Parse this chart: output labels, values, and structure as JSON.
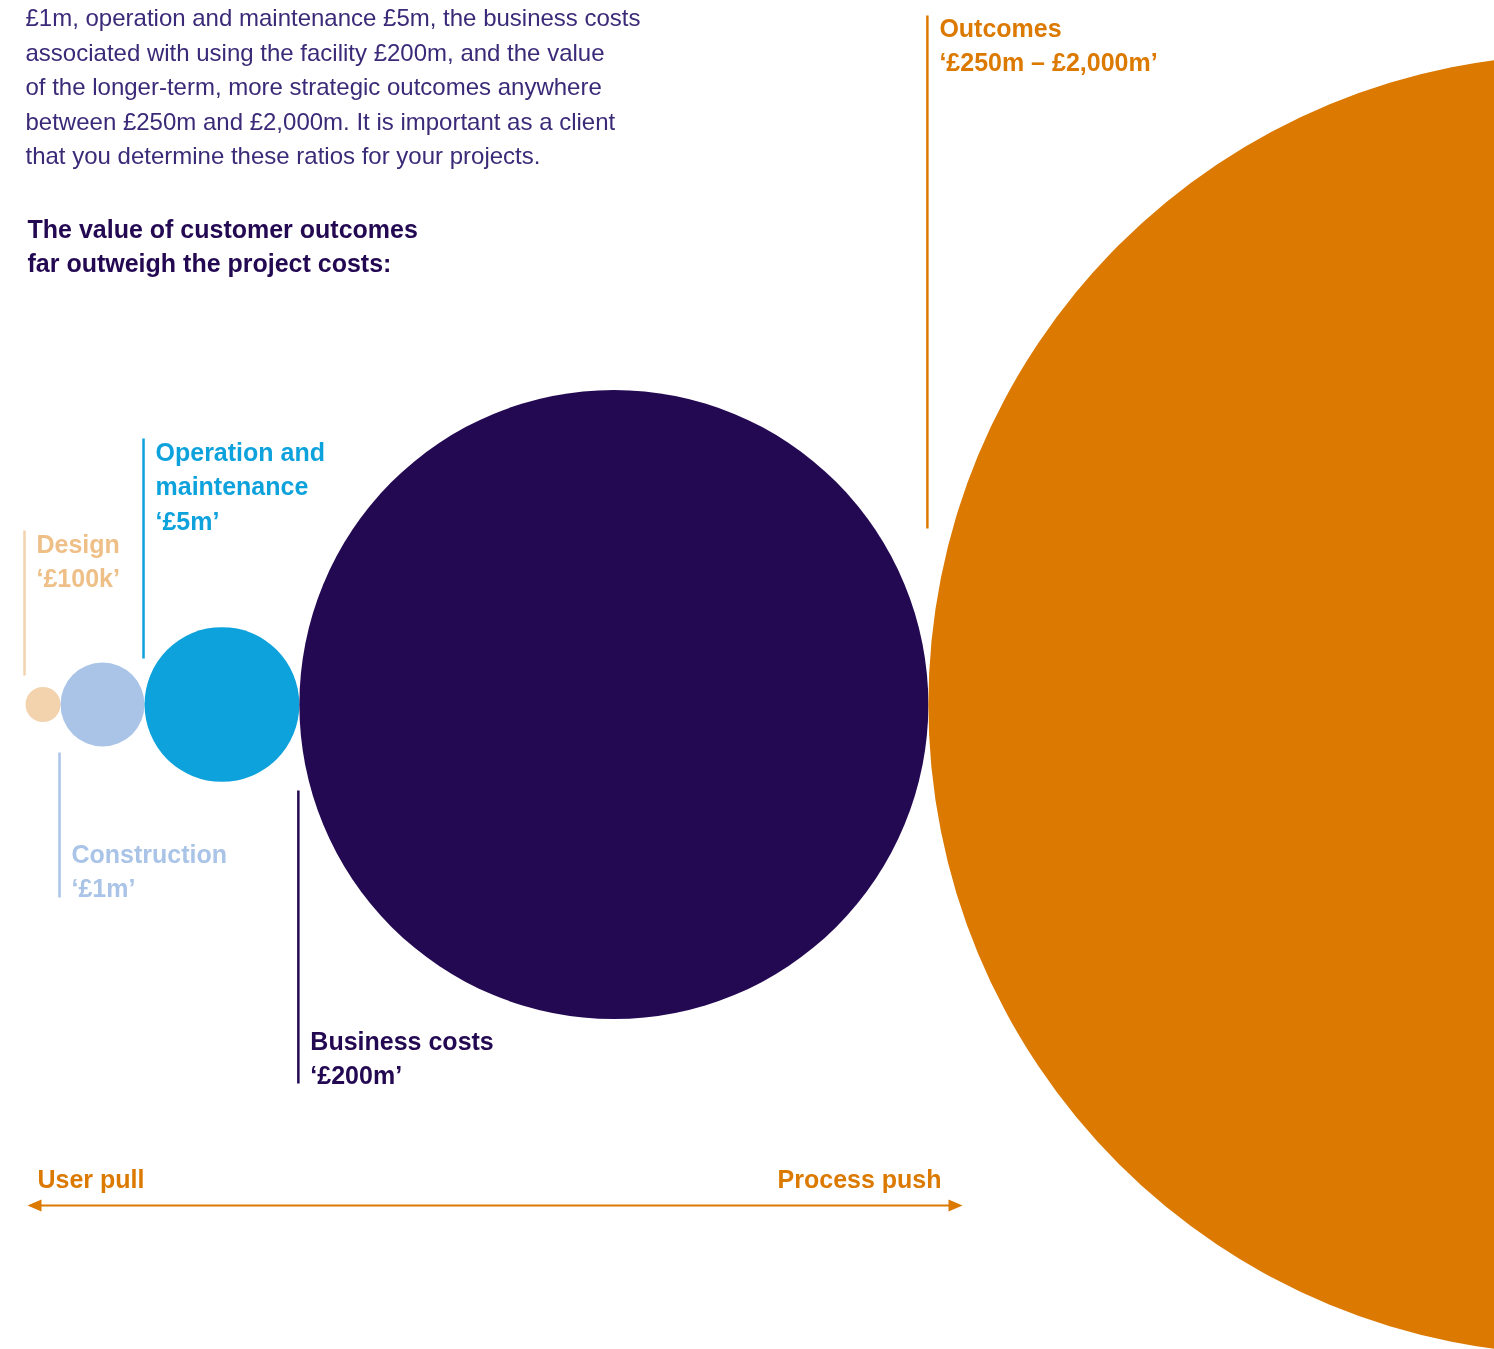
{
  "chart_data": {
    "type": "other",
    "title": "The value of customer outcomes\nfar outweigh the project costs:",
    "annotations": [
      "£1m, operation and maintenance £5m, the business costs\nassociated with using the facility £200m, and the value\nof the longer-term, more strategic outcomes anywhere\nbetween £250m and £2,000m. It is important as a client\nthat you determine these ratios for your projects.",
      "User pull",
      "Process push"
    ],
    "categories": [
      "Design",
      "Construction",
      "Operation and\nmaintenance",
      "Business costs",
      "Outcomes"
    ],
    "values": [
      100000,
      1000000,
      5000000,
      200000000,
      null
    ],
    "value_labels": [
      "‘£100k’",
      "‘£1m’",
      "‘£5m’",
      "‘£200m’",
      "‘£250m – £2,000m’"
    ],
    "colors": [
      "#f2d3ad",
      "#a9c4e7",
      "#0ea2dc",
      "#230852",
      "#db7900"
    ]
  }
}
